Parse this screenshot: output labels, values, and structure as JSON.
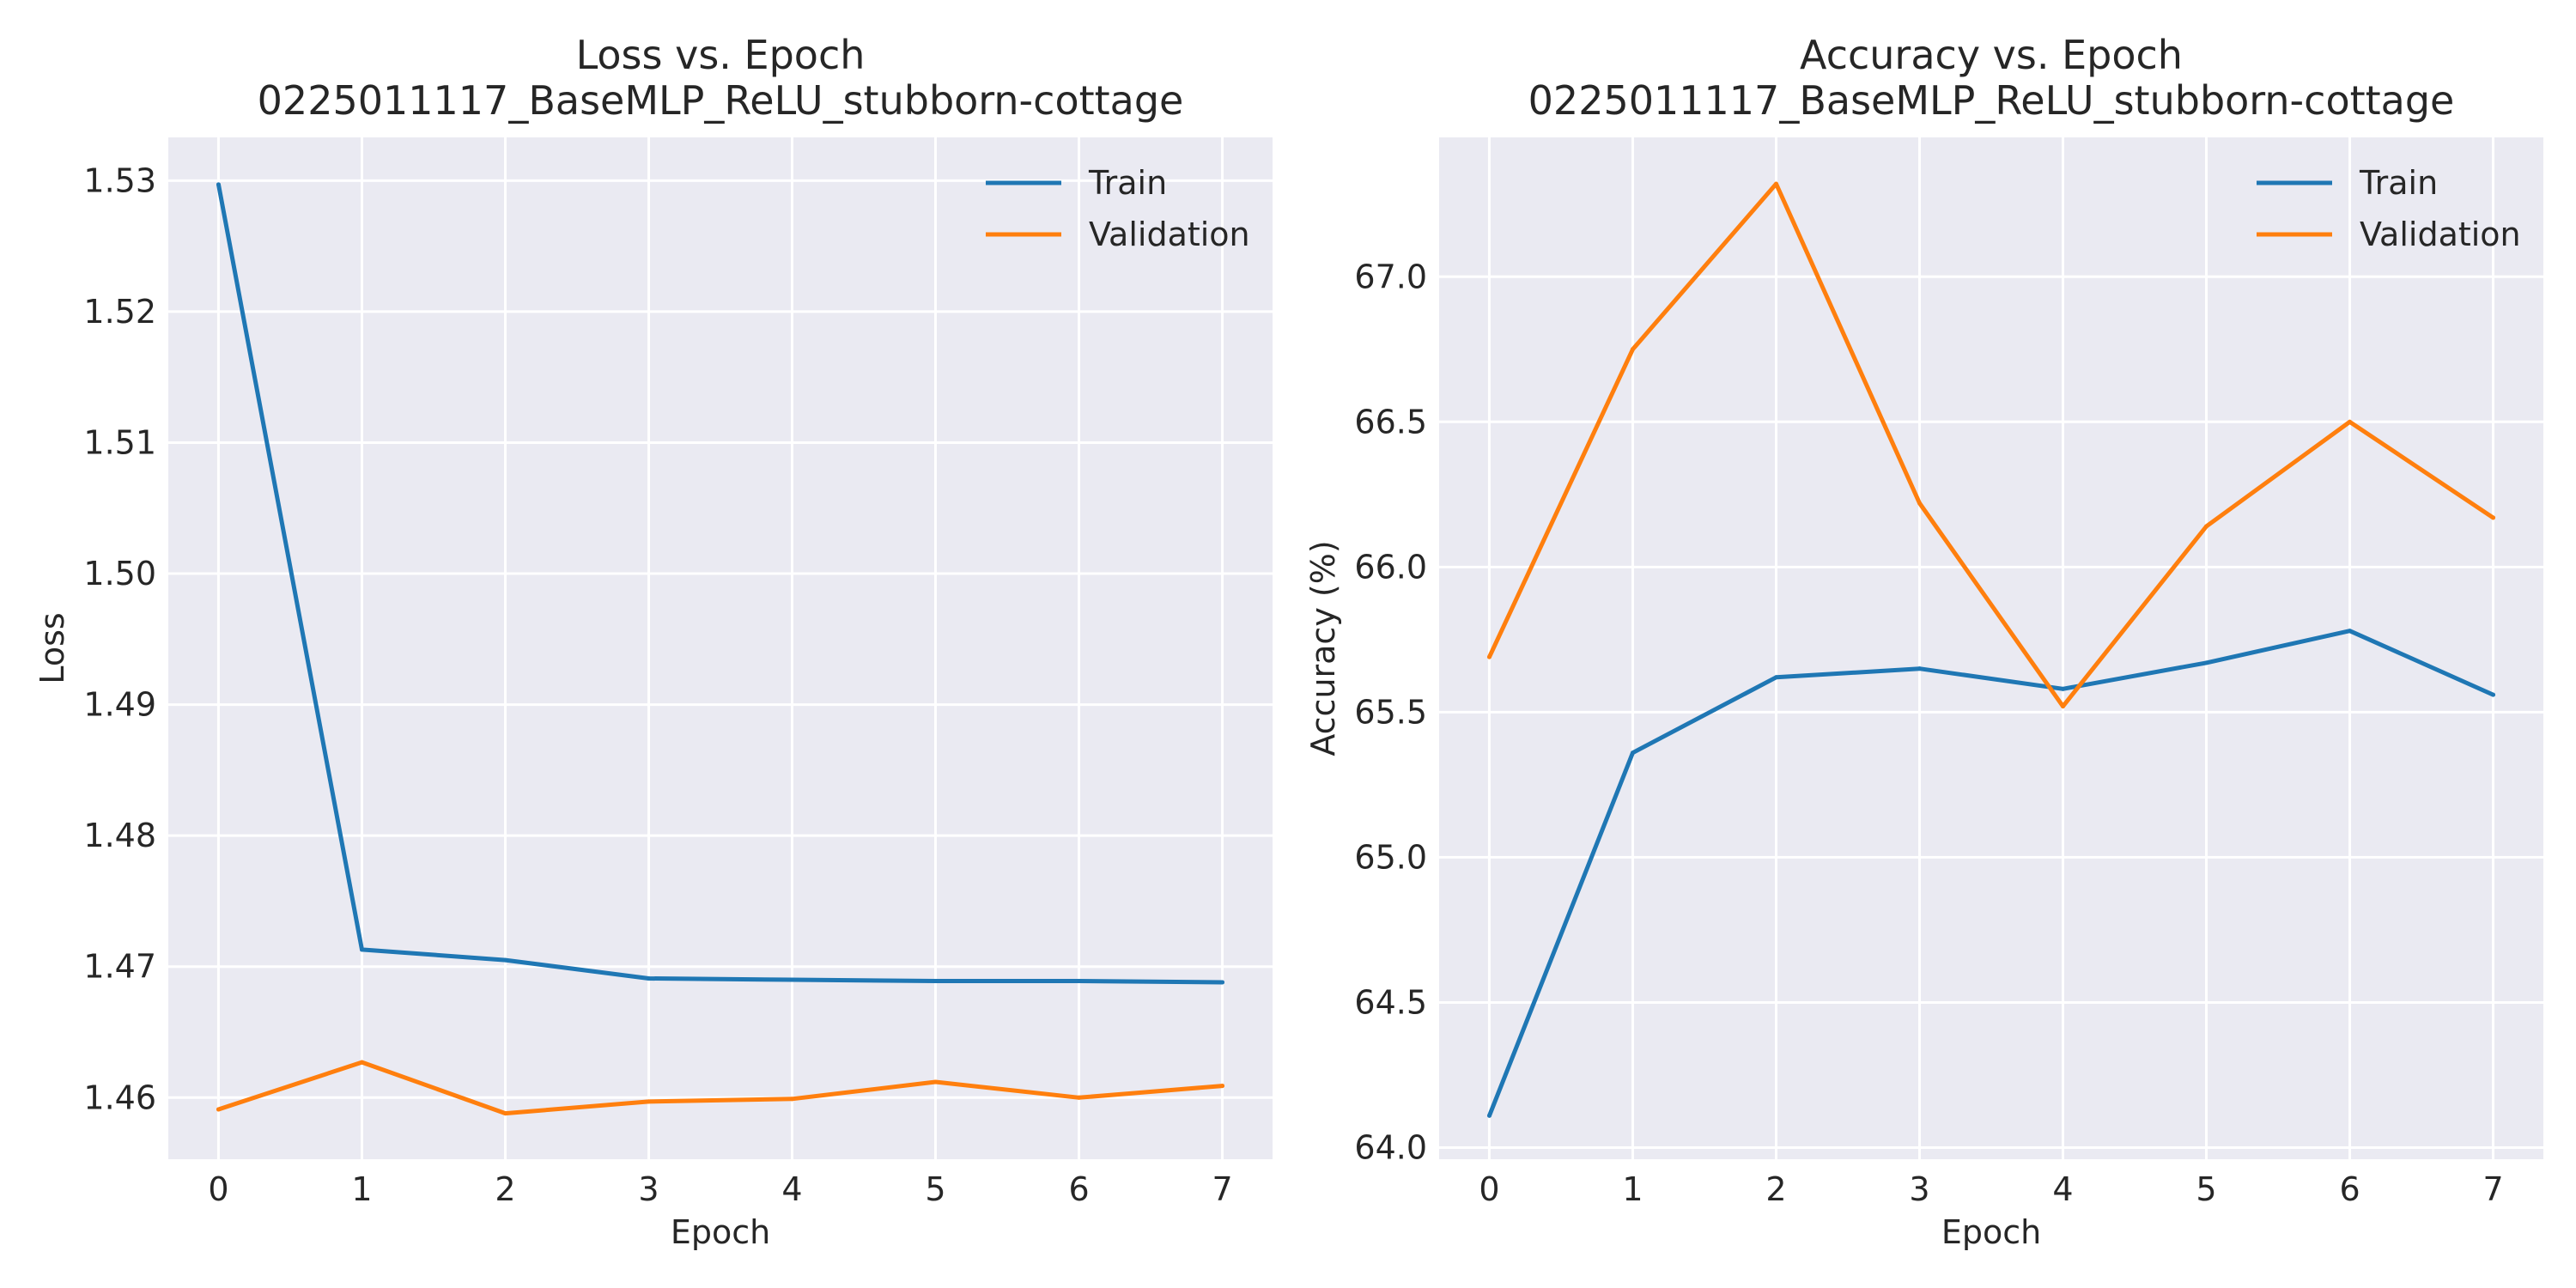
{
  "colors": {
    "train": "#1f77b4",
    "validation": "#ff7f0e",
    "plot_background": "#eaeaf2",
    "grid": "#ffffff"
  },
  "chart_data": [
    {
      "type": "line",
      "title": "Loss vs. Epoch",
      "subtitle": "0225011117_BaseMLP_ReLU_stubborn-cottage",
      "xlabel": "Epoch",
      "ylabel": "Loss",
      "x": [
        0,
        1,
        2,
        3,
        4,
        5,
        6,
        7
      ],
      "xticks": [
        "0",
        "1",
        "2",
        "3",
        "4",
        "5",
        "6",
        "7"
      ],
      "xlim": [
        -0.35,
        7.35
      ],
      "ylim": [
        1.4553,
        1.5333
      ],
      "yticks": [
        1.46,
        1.47,
        1.48,
        1.49,
        1.5,
        1.51,
        1.52,
        1.53
      ],
      "ytick_labels": [
        "1.46",
        "1.47",
        "1.48",
        "1.49",
        "1.50",
        "1.51",
        "1.52",
        "1.53"
      ],
      "grid": true,
      "legend": "top-right",
      "series": [
        {
          "name": "Train",
          "color": "#1f77b4",
          "values": [
            1.5297,
            1.4713,
            1.4705,
            1.4691,
            1.469,
            1.4689,
            1.4689,
            1.4688
          ]
        },
        {
          "name": "Validation",
          "color": "#ff7f0e",
          "values": [
            1.4591,
            1.4627,
            1.4588,
            1.4597,
            1.4599,
            1.4612,
            1.46,
            1.4609
          ]
        }
      ]
    },
    {
      "type": "line",
      "title": "Accuracy vs. Epoch",
      "subtitle": "0225011117_BaseMLP_ReLU_stubborn-cottage",
      "xlabel": "Epoch",
      "ylabel": "Accuracy (%)",
      "x": [
        0,
        1,
        2,
        3,
        4,
        5,
        6,
        7
      ],
      "xticks": [
        "0",
        "1",
        "2",
        "3",
        "4",
        "5",
        "6",
        "7"
      ],
      "xlim": [
        -0.35,
        7.35
      ],
      "ylim": [
        63.96,
        67.48
      ],
      "yticks": [
        64.0,
        64.5,
        65.0,
        65.5,
        66.0,
        66.5,
        67.0
      ],
      "ytick_labels": [
        "64.0",
        "64.5",
        "65.0",
        "65.5",
        "66.0",
        "66.5",
        "67.0"
      ],
      "grid": true,
      "legend": "top-right",
      "series": [
        {
          "name": "Train",
          "color": "#1f77b4",
          "values": [
            64.11,
            65.36,
            65.62,
            65.65,
            65.58,
            65.67,
            65.78,
            65.56
          ]
        },
        {
          "name": "Validation",
          "color": "#ff7f0e",
          "values": [
            65.69,
            66.75,
            67.32,
            66.22,
            65.52,
            66.14,
            66.5,
            66.17
          ]
        }
      ]
    }
  ]
}
